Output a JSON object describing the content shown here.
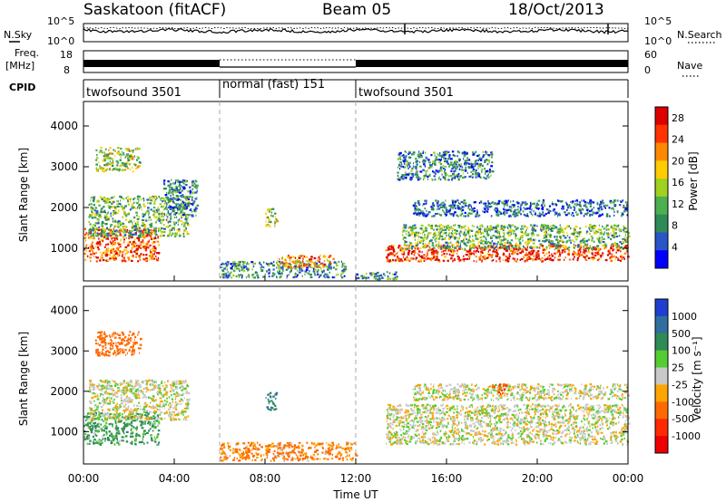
{
  "header": {
    "station": "Saskatoon (fitACF)",
    "beam": "Beam 05",
    "date": "18/Oct/2013"
  },
  "panels": {
    "noise": {
      "left_label": "N.Sky",
      "right_label": "N.Search",
      "tick_top": "10^5",
      "tick_bottom": "10^0",
      "right_tick_top": "10^5",
      "right_tick_bottom": "10^0"
    },
    "freq": {
      "left_label_1": "Freq.",
      "left_label_2": "[MHz]",
      "right_label": "Nave",
      "left_ticks": [
        "18",
        "8"
      ],
      "right_ticks": [
        "60",
        "0"
      ]
    },
    "cpid": {
      "label": "CPID",
      "segments": [
        {
          "name": "twofsound 3501",
          "start_hour": 0,
          "end_hour": 6
        },
        {
          "name": "normal (fast) 151",
          "start_hour": 6,
          "end_hour": 12
        },
        {
          "name": "twofsound 3501",
          "start_hour": 12,
          "end_hour": 24
        }
      ]
    }
  },
  "chart_data": [
    {
      "type": "heatmap",
      "title": "",
      "quantity": "Power",
      "xlabel": "",
      "ylabel": "Slant Range [km]",
      "xlim": [
        0,
        24
      ],
      "ylim": [
        200,
        4600
      ],
      "yticks": [
        "1000",
        "2000",
        "3000",
        "4000"
      ],
      "colorbar": {
        "label": "Power [dB]",
        "ticks": [
          "4",
          "8",
          "12",
          "16",
          "20",
          "24",
          "28"
        ],
        "range": [
          0,
          30
        ],
        "colors": [
          "#0000ff",
          "#2a55c8",
          "#2e8b57",
          "#4caf50",
          "#a0d020",
          "#ffcc00",
          "#ff8800",
          "#ff3300",
          "#dd0000"
        ]
      },
      "echo_regions": [
        {
          "t0": 0.0,
          "t1": 3.3,
          "r0": 700,
          "r1": 1500,
          "power": 24
        },
        {
          "t0": 0.2,
          "t1": 4.6,
          "r0": 1300,
          "r1": 2300,
          "power": 12
        },
        {
          "t0": 0.5,
          "t1": 2.5,
          "r0": 2900,
          "r1": 3500,
          "power": 14
        },
        {
          "t0": 3.5,
          "t1": 5.0,
          "r0": 1800,
          "r1": 2700,
          "power": 8
        },
        {
          "t0": 8.0,
          "t1": 8.5,
          "r0": 1550,
          "r1": 2000,
          "power": 14
        },
        {
          "t0": 6.0,
          "t1": 11.5,
          "r0": 300,
          "r1": 700,
          "power": 8
        },
        {
          "t0": 8.5,
          "t1": 11.0,
          "r0": 550,
          "r1": 850,
          "power": 22
        },
        {
          "t0": 12.0,
          "t1": 13.8,
          "r0": 250,
          "r1": 450,
          "power": 10
        },
        {
          "t0": 13.3,
          "t1": 24.0,
          "r0": 700,
          "r1": 1100,
          "power": 26
        },
        {
          "t0": 14.0,
          "t1": 24.0,
          "r0": 1000,
          "r1": 1600,
          "power": 12
        },
        {
          "t0": 14.5,
          "t1": 24.0,
          "r0": 1800,
          "r1": 2200,
          "power": 6
        },
        {
          "t0": 13.8,
          "t1": 18.0,
          "r0": 2700,
          "r1": 3400,
          "power": 8
        }
      ]
    },
    {
      "type": "heatmap",
      "title": "",
      "quantity": "Velocity",
      "xlabel": "Time UT",
      "ylabel": "Slant Range [km]",
      "xlim": [
        0,
        24
      ],
      "ylim": [
        200,
        4600
      ],
      "xticks": [
        "00:00",
        "04:00",
        "08:00",
        "12:00",
        "16:00",
        "20:00",
        "00:00"
      ],
      "yticks": [
        "1000",
        "2000",
        "3000",
        "4000"
      ],
      "colorbar": {
        "label": "Velocity [m s⁻¹]",
        "ticks": [
          "1000",
          "500",
          "100",
          "25",
          "-25",
          "-100",
          "-500",
          "-1000"
        ],
        "colors": [
          "#1f3fd0",
          "#2f6f9f",
          "#2e8b57",
          "#55cc33",
          "#c8c8c8",
          "#ffa500",
          "#ff6a00",
          "#ff2a00",
          "#ee0000"
        ]
      },
      "echo_regions": [
        {
          "t0": 0.0,
          "t1": 3.3,
          "r0": 700,
          "r1": 1500,
          "velocity": 80
        },
        {
          "t0": 0.2,
          "t1": 4.6,
          "r0": 1300,
          "r1": 2300,
          "velocity": 0
        },
        {
          "t0": 0.5,
          "t1": 2.5,
          "r0": 2900,
          "r1": 3500,
          "velocity": -150
        },
        {
          "t0": 8.0,
          "t1": 8.5,
          "r0": 1550,
          "r1": 2000,
          "velocity": 300
        },
        {
          "t0": 6.0,
          "t1": 12.0,
          "r0": 300,
          "r1": 750,
          "velocity": -80
        },
        {
          "t0": 13.3,
          "t1": 24.0,
          "r0": 700,
          "r1": 1700,
          "velocity": 0
        },
        {
          "t0": 14.5,
          "t1": 24.0,
          "r0": 1800,
          "r1": 2200,
          "velocity": 0
        },
        {
          "t0": 18.0,
          "t1": 18.6,
          "r0": 1900,
          "r1": 2200,
          "velocity": -300
        }
      ]
    }
  ]
}
